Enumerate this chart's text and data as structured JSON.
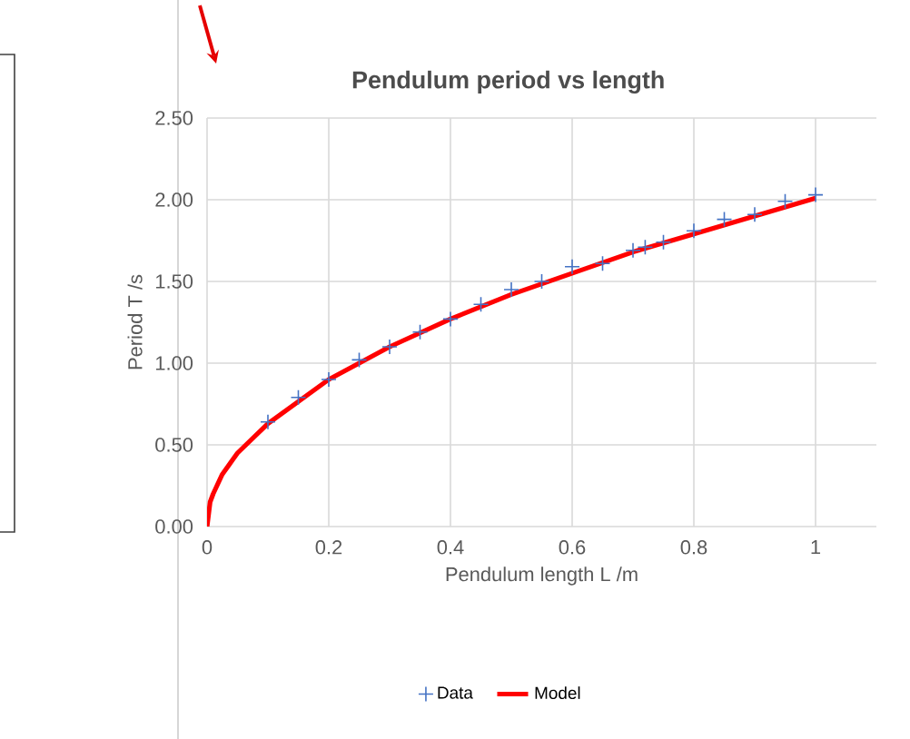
{
  "chart_data": {
    "type": "scatter",
    "title": "Pendulum period vs length",
    "xlabel": "Pendulum length L /m",
    "ylabel": "Period T /s",
    "xlim": [
      0,
      1.1
    ],
    "xticks": [
      0,
      0.2,
      0.4,
      0.6,
      0.8,
      1
    ],
    "ylim": [
      0,
      2.5
    ],
    "yticks": [
      {
        "value": 0,
        "label": "0.00"
      },
      {
        "value": 0.5,
        "label": "0.50"
      },
      {
        "value": 1,
        "label": "1.00"
      },
      {
        "value": 1.5,
        "label": "1.50"
      },
      {
        "value": 2,
        "label": "2.00"
      },
      {
        "value": 2.5,
        "label": "2.50"
      }
    ],
    "grid": true,
    "legend": "bottom",
    "series": [
      {
        "name": "Data",
        "marker": "cross",
        "color": "#4472c4",
        "x": [
          0.1,
          0.15,
          0.2,
          0.25,
          0.3,
          0.35,
          0.4,
          0.45,
          0.5,
          0.55,
          0.6,
          0.65,
          0.7,
          0.72,
          0.75,
          0.8,
          0.85,
          0.9,
          0.95,
          1.0
        ],
        "values": [
          0.64,
          0.79,
          0.9,
          1.02,
          1.1,
          1.19,
          1.27,
          1.36,
          1.45,
          1.5,
          1.59,
          1.61,
          1.69,
          1.71,
          1.74,
          1.81,
          1.88,
          1.91,
          1.99,
          2.03
        ]
      },
      {
        "name": "Model",
        "type": "line",
        "marker": "none",
        "color": "#ff0000",
        "x": [
          0,
          0.005,
          0.01,
          0.025,
          0.05,
          0.1,
          0.2,
          0.3,
          0.4,
          0.5,
          0.6,
          0.7,
          0.8,
          0.9,
          1.0
        ],
        "values": [
          0,
          0.15,
          0.2,
          0.32,
          0.45,
          0.63,
          0.9,
          1.1,
          1.27,
          1.42,
          1.55,
          1.68,
          1.79,
          1.9,
          2.01
        ]
      }
    ]
  }
}
